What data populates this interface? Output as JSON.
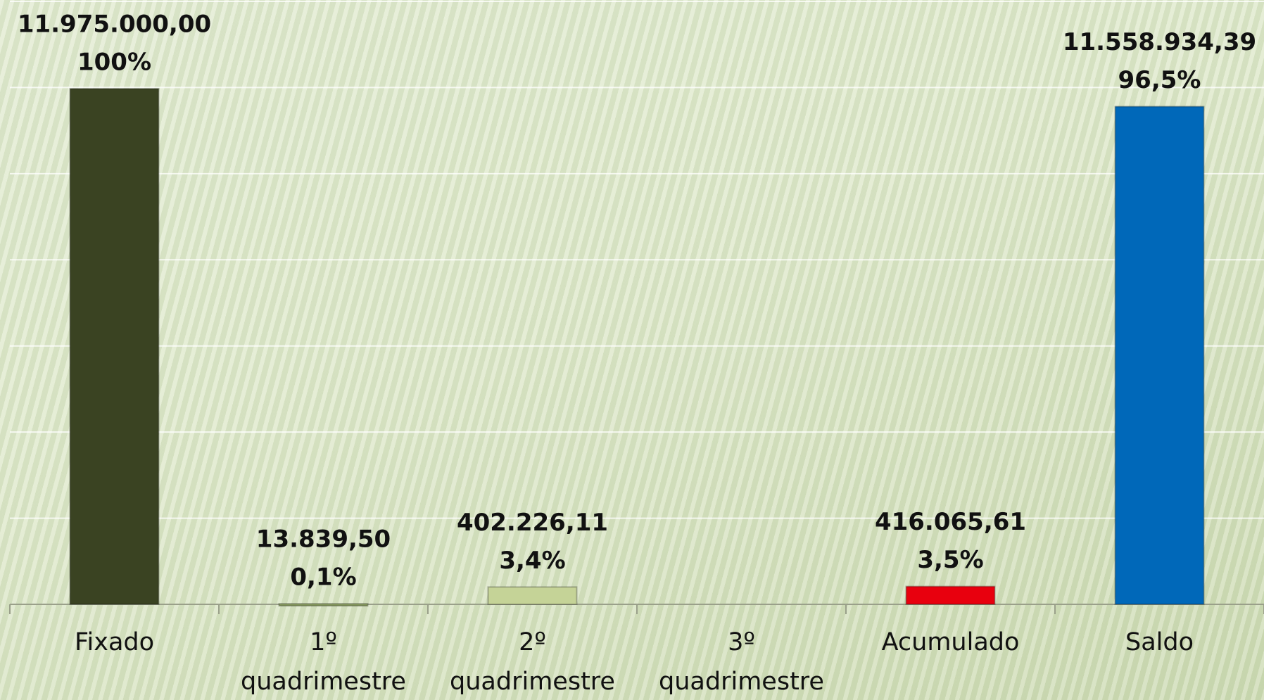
{
  "chart_data": {
    "type": "bar",
    "categories": [
      "Fixado",
      "1º quadrimestre",
      "2º quadrimestre",
      "3º quadrimestre",
      "Acumulado",
      "Saldo"
    ],
    "values": [
      11975000,
      13839.5,
      402226.11,
      null,
      416065.61,
      11558934.39
    ],
    "value_labels": [
      "11.975.000,00",
      "13.839,50",
      "402.226,11",
      null,
      "416.065,61",
      "11.558.934,39"
    ],
    "percent_labels": [
      "100%",
      "0,1%",
      "3,4%",
      null,
      "3,5%",
      "96,5%"
    ],
    "colors": [
      "#3a4322",
      "#8ea363",
      "#c5d397",
      null,
      "#e8000e",
      "#0068b9"
    ],
    "ylim": [
      0,
      14000000
    ],
    "yticks": [
      0,
      2000000,
      4000000,
      6000000,
      8000000,
      10000000,
      12000000,
      14000000
    ],
    "grid": true
  }
}
